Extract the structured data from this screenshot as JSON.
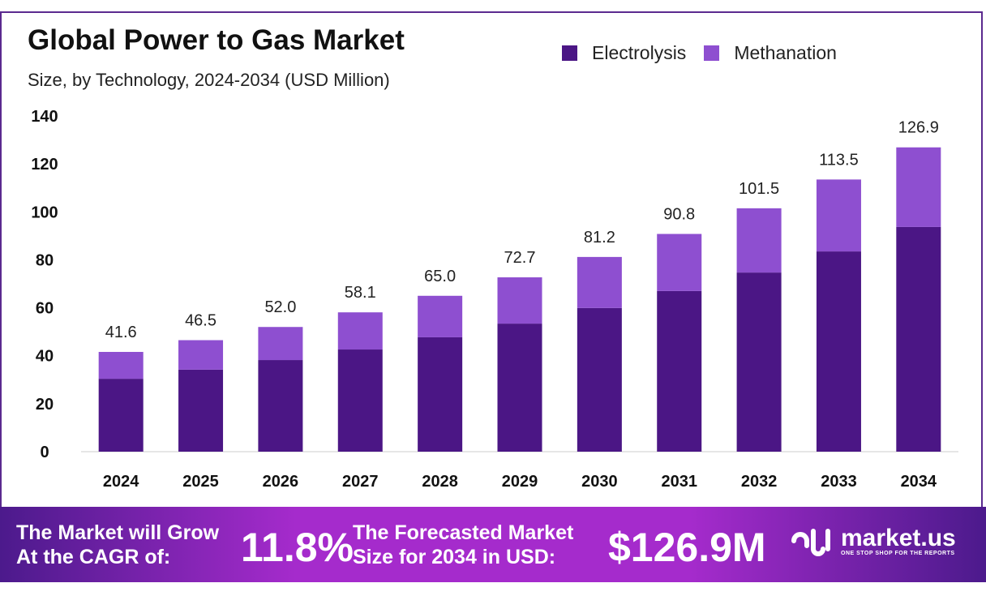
{
  "chart_data": {
    "type": "bar",
    "stacked": true,
    "title": "Global Power to Gas Market",
    "subtitle": "Size, by Technology, 2024-2034 (USD Million)",
    "categories": [
      "2024",
      "2025",
      "2026",
      "2027",
      "2028",
      "2029",
      "2030",
      "2031",
      "2032",
      "2033",
      "2034"
    ],
    "series": [
      {
        "name": "Electrolysis",
        "color": "#4b1685",
        "values": [
          30.4,
          34.2,
          38.2,
          42.6,
          47.7,
          53.4,
          59.9,
          67.0,
          74.7,
          83.5,
          93.7
        ]
      },
      {
        "name": "Methanation",
        "color": "#8e4fd0",
        "values": [
          11.2,
          12.3,
          13.8,
          15.5,
          17.3,
          19.3,
          21.3,
          23.8,
          26.8,
          30.0,
          33.2
        ]
      }
    ],
    "totals": [
      "41.6",
      "46.5",
      "52.0",
      "58.1",
      "65.0",
      "72.7",
      "81.2",
      "90.8",
      "101.5",
      "113.5",
      "126.9"
    ],
    "yticks": [
      "0",
      "20",
      "40",
      "60",
      "80",
      "100",
      "120",
      "140"
    ],
    "ylim": [
      0,
      140
    ],
    "legend": "top-right",
    "grid": false
  },
  "banner": {
    "cagr_label_1": "The Market will Grow",
    "cagr_label_2": "At the CAGR of:",
    "cagr_value": "11.8%",
    "forecast_label_1": "The Forecasted Market",
    "forecast_label_2": "Size for 2034 in USD:",
    "forecast_value": "$126.9M",
    "logo_name": "market.us",
    "logo_tagline": "ONE STOP SHOP FOR THE REPORTS"
  }
}
